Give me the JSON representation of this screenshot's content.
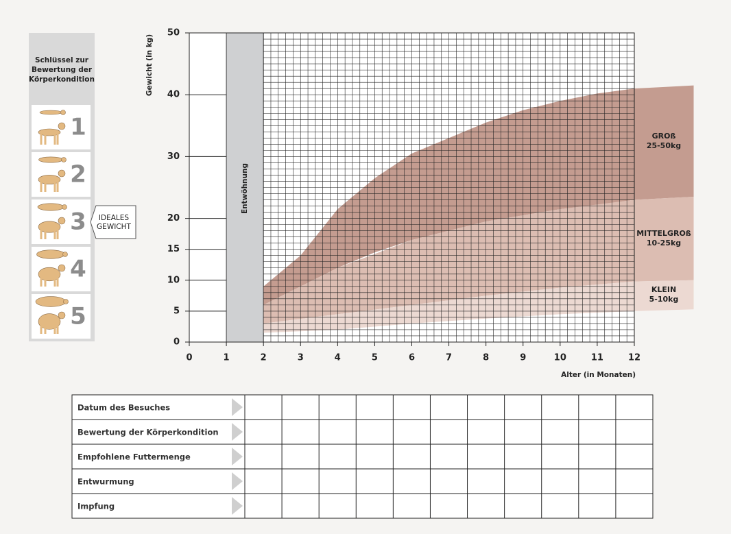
{
  "key_panel": {
    "title": [
      "Schlüssel zur",
      "Bewertung der",
      "Körperkondition"
    ],
    "scores": [
      1,
      2,
      3,
      4,
      5
    ],
    "callout": [
      "IDEALES",
      "GEWICHT"
    ]
  },
  "chart_data": {
    "type": "band",
    "y_label": "Gewicht (in kg)",
    "x_label": "Alter (in Monaten)",
    "xlim": [
      0,
      12
    ],
    "ylim": [
      0,
      50
    ],
    "xticks": [
      0,
      1,
      2,
      3,
      4,
      5,
      6,
      7,
      8,
      9,
      10,
      11,
      12
    ],
    "yticks": [
      0,
      5,
      10,
      15,
      20,
      30,
      40,
      50
    ],
    "weaning": {
      "label": "Entwöhnung",
      "range": [
        1,
        2
      ]
    },
    "series": [
      {
        "name": "GROß",
        "range": "25-50kg",
        "color": "#c49c90",
        "x": [
          2,
          3,
          4,
          5,
          6,
          7,
          8,
          9,
          10,
          11,
          12,
          13.6
        ],
        "upper": [
          9,
          14,
          21.5,
          26.5,
          30.5,
          33,
          35.5,
          37.5,
          39,
          40.2,
          41,
          41.5
        ],
        "lower": [
          6,
          9,
          12,
          14.5,
          16.5,
          18,
          19.5,
          20.5,
          21.5,
          22.2,
          23,
          23.5
        ]
      },
      {
        "name": "MITTELGROß",
        "range": "10-25kg",
        "color": "#dcbdb2",
        "x": [
          2,
          4,
          6,
          8,
          10,
          12,
          13.6
        ],
        "upper": [
          6,
          12,
          16.5,
          19.5,
          21.5,
          23,
          23.5
        ],
        "lower": [
          3,
          4.5,
          6,
          7.5,
          8.8,
          9.8,
          10
        ]
      },
      {
        "name": "KLEIN",
        "range": "5-10kg",
        "color": "#ecd9d2",
        "x": [
          2,
          4,
          6,
          8,
          10,
          12,
          13.6
        ],
        "upper": [
          3,
          4.5,
          6,
          7.5,
          8.8,
          9.8,
          10
        ],
        "lower": [
          1.5,
          2,
          3,
          3.8,
          4.5,
          5,
          5.3
        ]
      }
    ]
  },
  "table": {
    "rows": [
      "Datum des Besuches",
      "Bewertung der Körperkondition",
      "Empfohlene Futtermenge",
      "Entwurmung",
      "Impfung"
    ]
  }
}
